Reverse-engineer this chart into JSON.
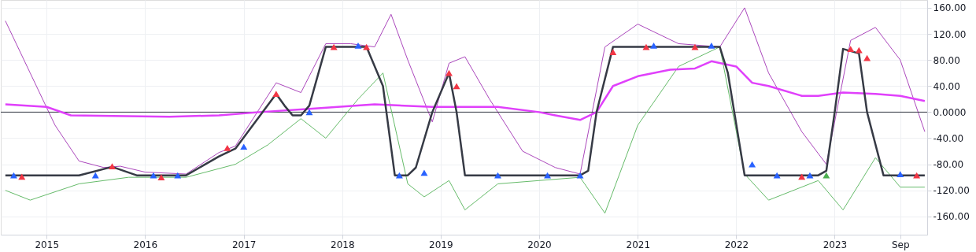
{
  "chart_data": {
    "type": "line",
    "xlim": [
      "2014-07-15",
      "2023-12-10"
    ],
    "xticks": [
      "2015",
      "2016",
      "2017",
      "2018",
      "2019",
      "2020",
      "2021",
      "2022",
      "2023",
      {
        "value": "2023-09",
        "label": "Sep"
      }
    ],
    "ylim": [
      -188,
      172
    ],
    "yticks": [
      {
        "value": -160,
        "label": "-160.00"
      },
      {
        "value": -120,
        "label": "-120.00"
      },
      {
        "value": -80,
        "label": "-80.00"
      },
      {
        "value": -40,
        "label": "-40.00"
      },
      {
        "value": 0,
        "label": "0.0000"
      },
      {
        "value": 40,
        "label": "40.00"
      },
      {
        "value": 80,
        "label": "80.00"
      },
      {
        "value": 120,
        "label": "120.00"
      },
      {
        "value": 160,
        "label": "160.00"
      }
    ],
    "grid": true,
    "ref_lines": [
      {
        "axis": "y",
        "value": 0,
        "color": "#363a45"
      }
    ],
    "series": [
      {
        "color": "#ab47bc",
        "x": [
          "2014-08",
          "2014-11",
          "2015-02",
          "2015-05",
          "2015-08",
          "2015-10",
          "2016-01",
          "2016-06",
          "2016-10",
          "2016-12",
          "2017-05",
          "2017-08",
          "2017-11",
          "2018-02",
          "2018-05",
          "2018-07",
          "2018-09",
          "2018-12",
          "2019-02",
          "2019-04",
          "2019-07",
          "2019-11",
          "2020-03",
          "2020-06",
          "2020-09",
          "2021-01",
          "2021-06",
          "2021-11",
          "2022-02",
          "2022-05",
          "2022-09",
          "2022-12",
          "2023-03",
          "2023-06",
          "2023-09",
          "2023-12"
        ],
        "values": [
          140,
          60,
          -20,
          -75,
          -85,
          -83,
          -92,
          -95,
          -62,
          -52,
          45,
          30,
          105,
          105,
          100,
          150,
          80,
          -15,
          75,
          85,
          20,
          -60,
          -85,
          -95,
          100,
          135,
          105,
          100,
          160,
          60,
          -30,
          -80,
          110,
          130,
          80,
          -30
        ]
      },
      {
        "color": "#66bb6a",
        "x": [
          "2014-08",
          "2014-11",
          "2015-05",
          "2015-11",
          "2016-06",
          "2016-12",
          "2017-04",
          "2017-08",
          "2017-11",
          "2018-03",
          "2018-06",
          "2018-09",
          "2018-11",
          "2019-02",
          "2019-04",
          "2019-08",
          "2020-06",
          "2020-09",
          "2021-01",
          "2021-06",
          "2021-11",
          "2022-02",
          "2022-05",
          "2022-11",
          "2023-02",
          "2023-06",
          "2023-09",
          "2023-12"
        ],
        "values": [
          -120,
          -135,
          -110,
          -100,
          -100,
          -80,
          -50,
          -10,
          -40,
          20,
          60,
          -110,
          -130,
          -105,
          -150,
          -110,
          -100,
          -155,
          -20,
          70,
          100,
          -95,
          -135,
          -105,
          -150,
          -70,
          -115,
          -115
        ]
      },
      {
        "color": "#e040fb",
        "x": [
          "2014-08",
          "2015-01",
          "2015-04",
          "2016-04",
          "2016-10",
          "2017-03",
          "2017-09",
          "2018-05",
          "2018-12",
          "2019-08",
          "2020-01",
          "2020-03",
          "2020-06",
          "2020-08",
          "2020-10",
          "2021-01",
          "2021-05",
          "2021-08",
          "2021-10",
          "2022-01",
          "2022-03",
          "2022-05",
          "2022-09",
          "2022-11",
          "2023-02",
          "2023-06",
          "2023-09",
          "2023-12"
        ],
        "values": [
          12,
          8,
          -5,
          -7,
          -5,
          0,
          5,
          12,
          8,
          8,
          0,
          -5,
          -12,
          0,
          40,
          55,
          65,
          67,
          78,
          70,
          45,
          40,
          25,
          25,
          30,
          28,
          25,
          17
        ]
      },
      {
        "color": "#363a45",
        "x": [
          "2014-08",
          "2015-05",
          "2015-09",
          "2015-12",
          "2016-06",
          "2016-10",
          "2016-12",
          "2017-05",
          "2017-06",
          "2017-07",
          "2017-08",
          "2017-09",
          "2017-11",
          "2018-04",
          "2018-06",
          "2018-07-15",
          "2018-09",
          "2018-10",
          "2018-12",
          "2019-02",
          "2019-03",
          "2019-04",
          "2020-06",
          "2020-07",
          "2020-08",
          "2020-10",
          "2021-11",
          "2021-12",
          "2022-02",
          "2022-11",
          "2022-12",
          "2023-01",
          "2023-02",
          "2023-04",
          "2023-05",
          "2023-07",
          "2023-12"
        ],
        "values": [
          -97,
          -97,
          -84,
          -97,
          -97,
          -68,
          -56,
          28,
          10,
          -5,
          -5,
          10,
          100,
          100,
          40,
          -97,
          -97,
          -85,
          0,
          60,
          0,
          -97,
          -97,
          -90,
          0,
          100,
          100,
          60,
          -97,
          -97,
          -90,
          0,
          97,
          90,
          0,
          -97,
          -97
        ]
      },
      {
        "type": "scatter",
        "color": "#f23645",
        "marker": "triangle",
        "x": [
          "2014-10",
          "2015-09",
          "2016-03",
          "2016-11",
          "2017-05",
          "2017-12",
          "2018-04",
          "2019-02",
          "2019-03",
          "2020-10",
          "2021-02",
          "2021-08",
          "2022-09",
          "2023-03",
          "2023-04",
          "2023-05",
          "2023-11"
        ],
        "values": [
          -99,
          -83,
          -100,
          -55,
          28,
          100,
          100,
          60,
          40,
          92,
          100,
          100,
          -99,
          97,
          95,
          83,
          -97
        ]
      },
      {
        "type": "scatter",
        "color": "#2962ff",
        "marker": "triangle",
        "x": [
          "2014-09",
          "2015-07",
          "2016-02",
          "2016-05",
          "2017-01",
          "2017-09",
          "2018-03",
          "2018-08",
          "2018-11",
          "2019-08",
          "2020-02",
          "2020-06",
          "2021-03",
          "2021-10",
          "2022-03",
          "2022-06",
          "2022-10",
          "2023-09"
        ],
        "values": [
          -97,
          -97,
          -97,
          -97,
          -53,
          0,
          102,
          -97,
          -93,
          -97,
          -97,
          -97,
          102,
          102,
          -80,
          -97,
          -97,
          -95
        ]
      },
      {
        "type": "scatter",
        "color": "#4caf50",
        "marker": "triangle",
        "x": [
          "2022-12"
        ],
        "values": [
          -97
        ]
      }
    ]
  }
}
